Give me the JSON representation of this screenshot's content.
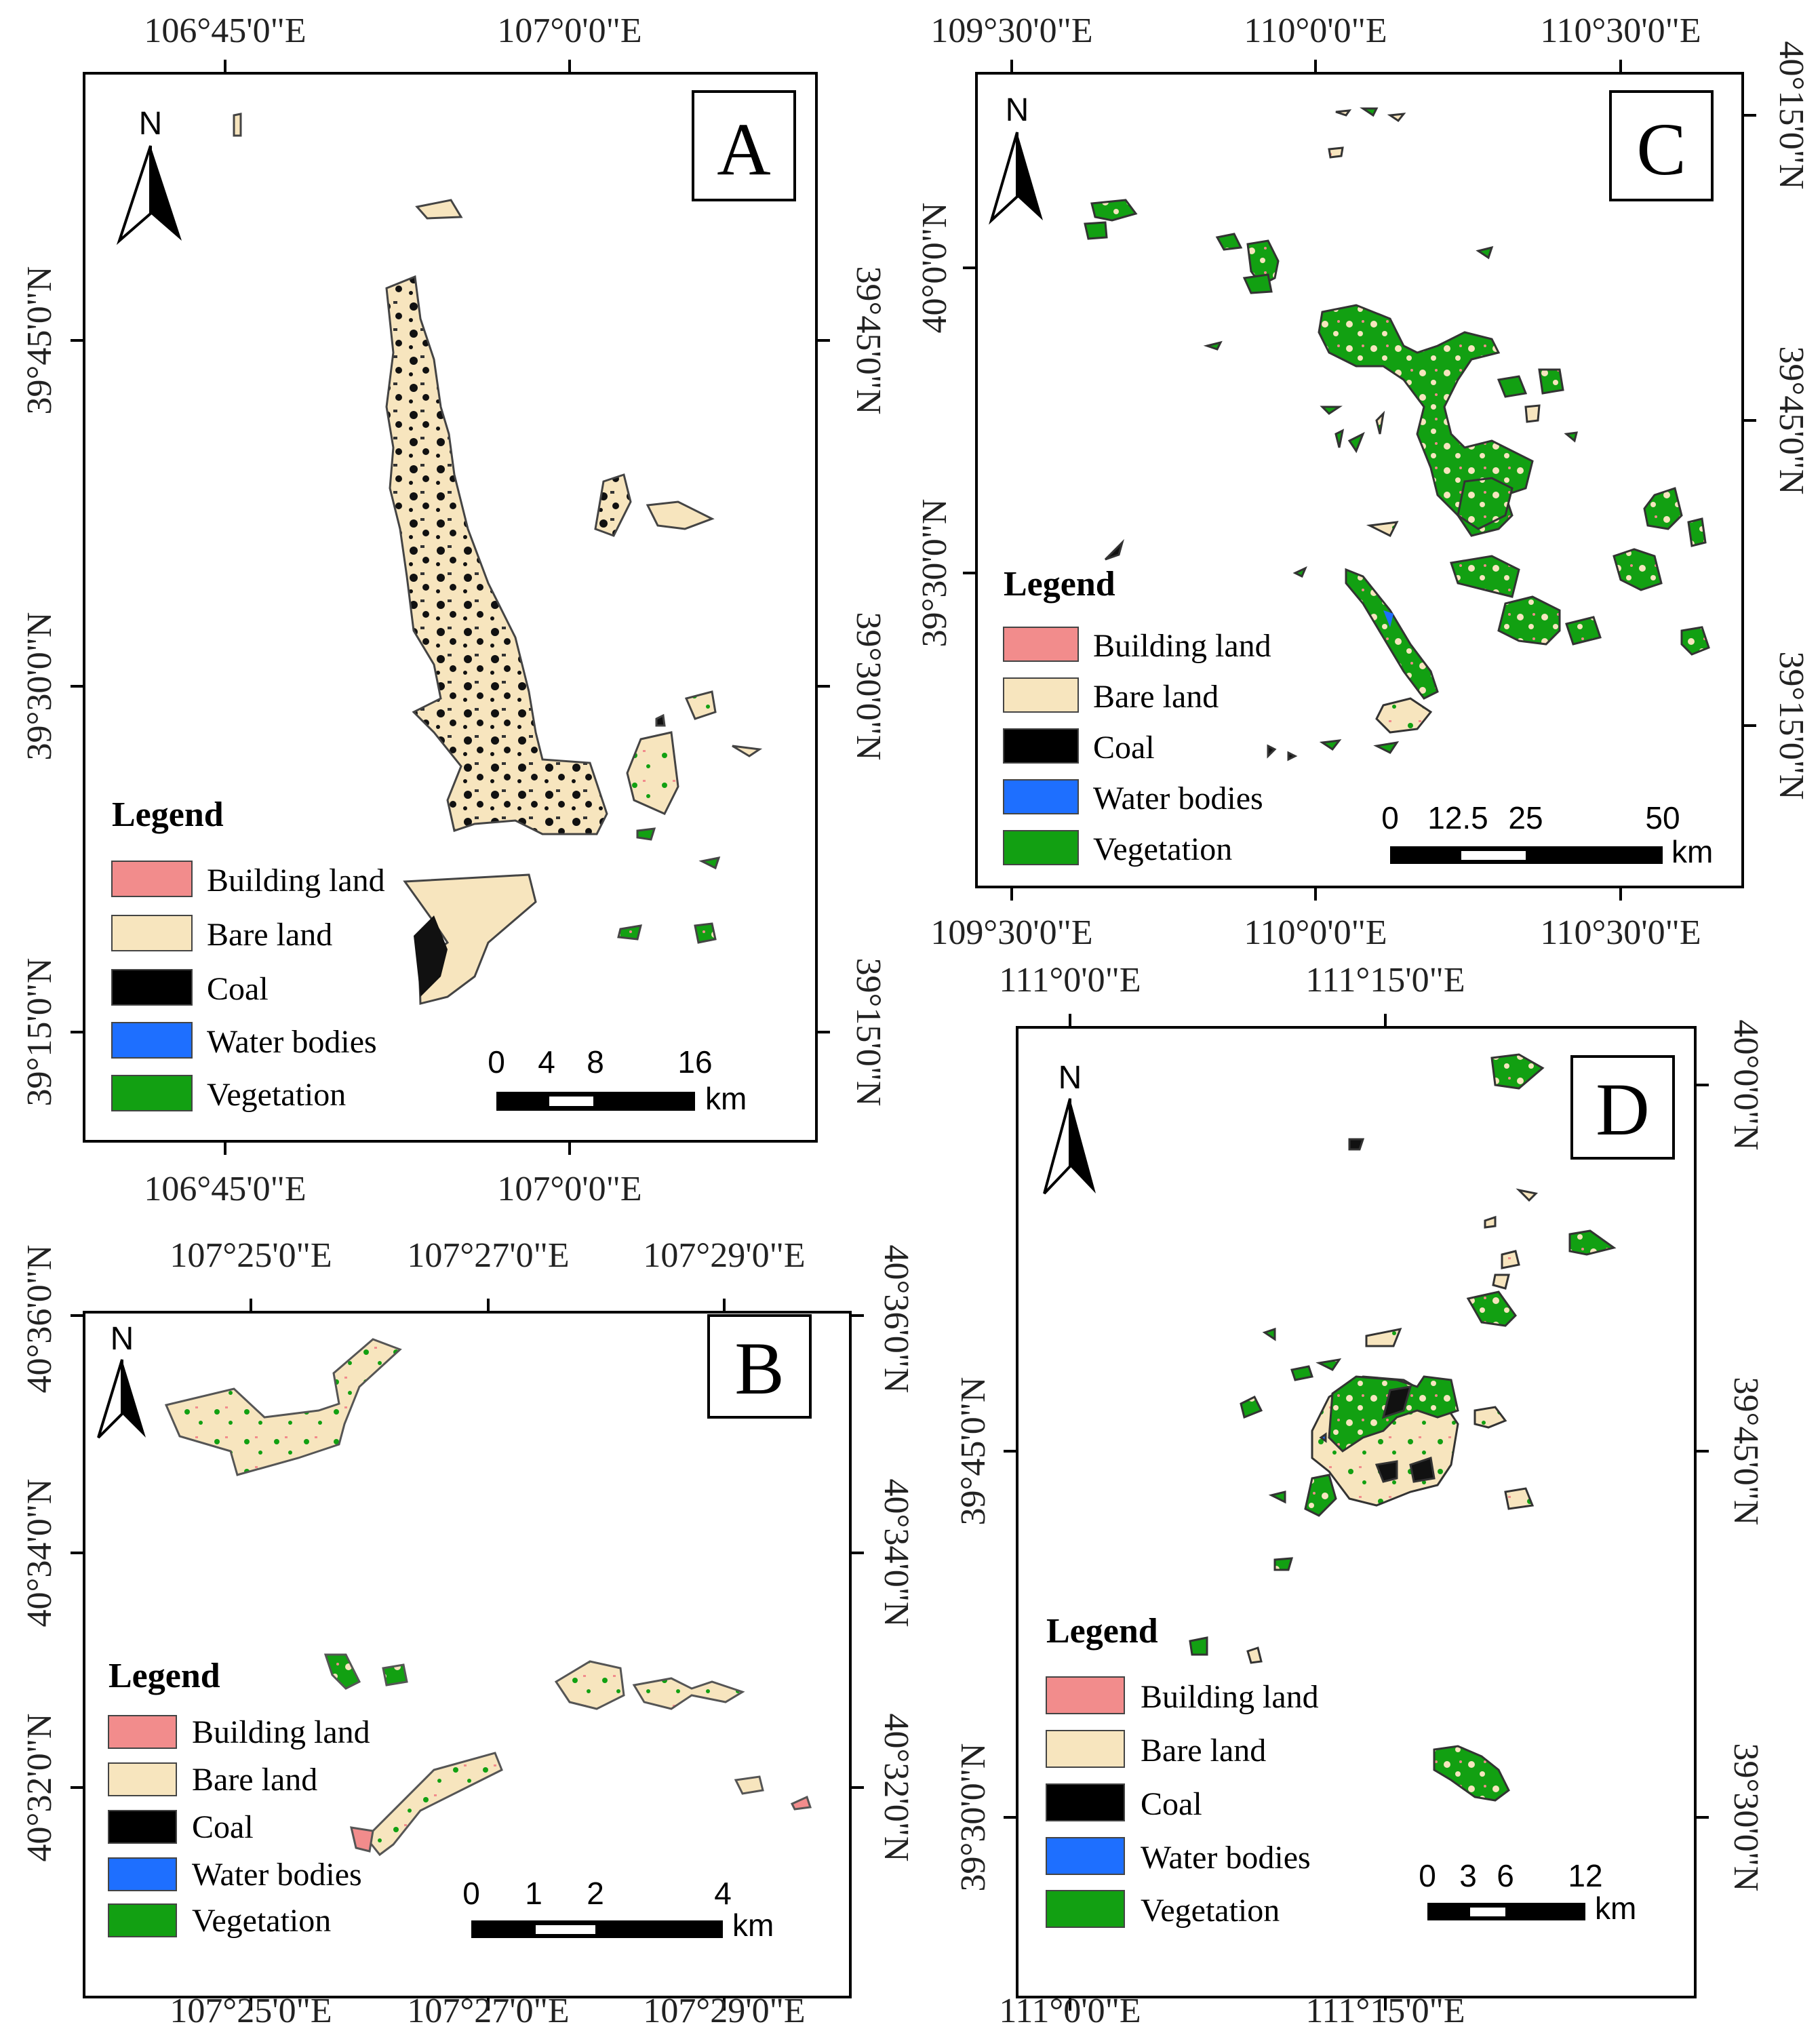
{
  "colors": {
    "building": "#F28C8C",
    "bare": "#F7E5BE",
    "coal": "#000000",
    "water": "#1E6FFF",
    "vegetation": "#12A012",
    "frame": "#000000"
  },
  "legend_title": "Legend",
  "legend_items": [
    "Building land",
    "Bare land",
    "Coal",
    "Water bodies",
    "Vegetation"
  ],
  "north_label": "N",
  "scale_unit": "km",
  "panels": {
    "A": {
      "letter": "A",
      "top_lon": [
        "106°45'0\"E",
        "107°0'0\"E"
      ],
      "bottom_lon": [
        "106°45'0\"E",
        "107°0'0\"E"
      ],
      "left_lat": [
        "39°45'0\"N",
        "39°30'0\"N",
        "39°15'0\"N"
      ],
      "right_lat": [
        "39°45'0\"N",
        "39°30'0\"N",
        "39°15'0\"N"
      ],
      "scale_ticks": [
        "0",
        "4",
        "8",
        "16"
      ]
    },
    "B": {
      "letter": "B",
      "top_lon": [
        "107°25'0\"E",
        "107°27'0\"E",
        "107°29'0\"E"
      ],
      "bottom_lon": [
        "107°25'0\"E",
        "107°27'0\"E",
        "107°29'0\"E"
      ],
      "left_lat": [
        "40°36'0\"N",
        "40°34'0\"N",
        "40°32'0\"N"
      ],
      "right_lat": [
        "40°36'0\"N",
        "40°34'0\"N",
        "40°32'0\"N"
      ],
      "scale_ticks": [
        "0",
        "1",
        "2",
        "4"
      ]
    },
    "C": {
      "letter": "C",
      "top_lon": [
        "109°30'0\"E",
        "110°0'0\"E",
        "110°30'0\"E"
      ],
      "bottom_lon": [
        "109°30'0\"E",
        "110°0'0\"E",
        "110°30'0\"E"
      ],
      "left_lat": [
        "40°0'0\"N",
        "39°30'0\"N"
      ],
      "right_lat": [
        "40°15'0\"N",
        "39°45'0\"N",
        "39°15'0\"N"
      ],
      "scale_ticks": [
        "0",
        "12.5",
        "25",
        "50"
      ]
    },
    "D": {
      "letter": "D",
      "top_lon": [
        "111°0'0\"E",
        "111°15'0\"E"
      ],
      "bottom_lon": [
        "111°0'0\"E",
        "111°15'0\"E"
      ],
      "left_lat": [
        "39°45'0\"N",
        "39°30'0\"N"
      ],
      "right_lat": [
        "40°0'0\"N",
        "39°45'0\"N",
        "39°30'0\"N"
      ],
      "scale_ticks": [
        "0",
        "3",
        "6",
        "12"
      ]
    }
  }
}
